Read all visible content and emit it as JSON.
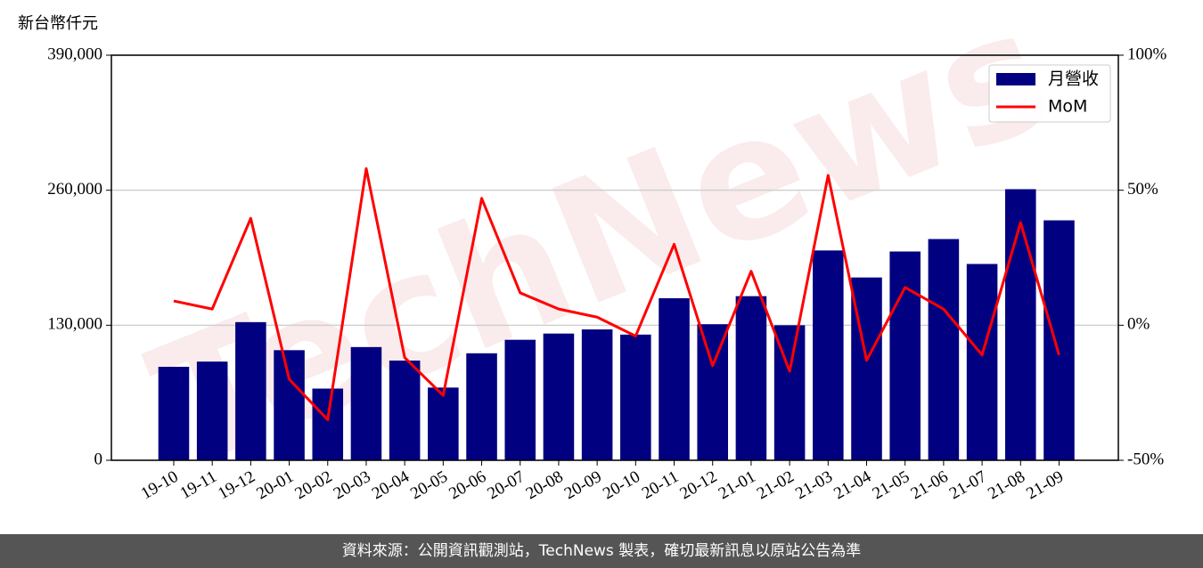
{
  "chart_data": {
    "type": "combo",
    "y_label": "新台幣仟元",
    "watermark": "TechNews",
    "categories": [
      "19-10",
      "19-11",
      "19-12",
      "20-01",
      "20-02",
      "20-03",
      "20-04",
      "20-05",
      "20-06",
      "20-07",
      "20-08",
      "20-09",
      "20-10",
      "20-11",
      "20-12",
      "21-01",
      "21-02",
      "21-03",
      "21-04",
      "21-05",
      "21-06",
      "21-07",
      "21-08",
      "21-09"
    ],
    "series": [
      {
        "name": "月營收",
        "type": "bar",
        "color": "#000080",
        "values": [
          90000,
          95000,
          133000,
          106000,
          69000,
          109000,
          96000,
          70000,
          103000,
          116000,
          122000,
          126000,
          121000,
          156000,
          131000,
          158000,
          130000,
          202000,
          176000,
          201000,
          213000,
          189000,
          261000,
          231000
        ]
      },
      {
        "name": "MoM",
        "type": "line",
        "color": "#ff0000",
        "axis": "y2",
        "values": [
          9,
          6,
          39.6,
          -20,
          -35,
          58,
          -12,
          -26,
          47,
          12,
          6,
          3,
          -4,
          30,
          -15,
          20,
          -17,
          55.5,
          -13,
          14,
          6,
          -11,
          38,
          -11
        ]
      }
    ],
    "ylim": [
      0,
      390000
    ],
    "yticks": [
      0,
      {
        "value": 130000,
        "label": "130,000"
      },
      {
        "value": 260000,
        "label": "260,000"
      },
      {
        "value": 390000,
        "label": "390,000"
      }
    ],
    "y2lim": [
      -50,
      100
    ],
    "y2ticks": [
      {
        "value": -50,
        "label": "-50%"
      },
      {
        "value": 0,
        "label": "0%"
      },
      {
        "value": 50,
        "label": "50%"
      },
      {
        "value": 100,
        "label": "100%"
      }
    ],
    "grid": true,
    "legend": "upper-right"
  },
  "footer": "資料來源：公開資訊觀測站，TechNews 製表，確切最新訊息以原站公告為準"
}
